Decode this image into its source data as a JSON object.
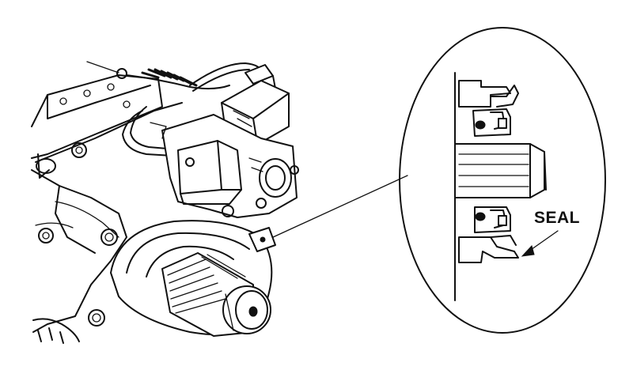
{
  "callouts": {
    "seal_label": "SEAL"
  },
  "colors": {
    "ink": "#111111",
    "paper": "#ffffff"
  }
}
